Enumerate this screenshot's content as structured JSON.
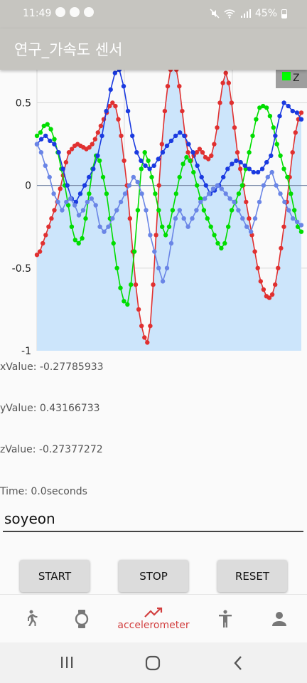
{
  "status_bar": {
    "time": "11:49",
    "battery": "45%"
  },
  "app_bar": {
    "title": "연구_가속도 센서"
  },
  "chart_data": {
    "type": "line",
    "ylim": [
      -1,
      0.7
    ],
    "yticks": [
      "0.5",
      "0",
      "-0.5",
      "-1"
    ],
    "legend": [
      {
        "name": "Z",
        "color": "#00ff00"
      }
    ],
    "legend_position": "top-right",
    "grid": true,
    "filled_series_color": "#cce5fb",
    "series": [
      {
        "color": "#e03030",
        "values": [
          -0.42,
          -0.4,
          -0.35,
          -0.3,
          -0.25,
          -0.2,
          -0.15,
          -0.1,
          -0.02,
          0.06,
          0.14,
          0.2,
          0.22,
          0.24,
          0.25,
          0.24,
          0.23,
          0.22,
          0.23,
          0.25,
          0.28,
          0.32,
          0.36,
          0.4,
          0.44,
          0.48,
          0.5,
          0.48,
          0.4,
          0.3,
          0.15,
          0.0,
          -0.2,
          -0.4,
          -0.6,
          -0.75,
          -0.85,
          -0.92,
          -0.95,
          -0.85,
          -0.6,
          -0.3,
          0.0,
          0.25,
          0.45,
          0.6,
          0.7,
          0.73,
          0.7,
          0.6,
          0.45,
          0.3,
          0.2,
          0.15,
          0.18,
          0.2,
          0.22,
          0.2,
          0.17,
          0.16,
          0.18,
          0.25,
          0.35,
          0.5,
          0.62,
          0.68,
          0.62,
          0.5,
          0.35,
          0.2,
          0.1,
          0.0,
          -0.1,
          -0.2,
          -0.3,
          -0.4,
          -0.5,
          -0.58,
          -0.63,
          -0.67,
          -0.68,
          -0.66,
          -0.6,
          -0.5,
          -0.38,
          -0.25,
          -0.1,
          0.05,
          0.2,
          0.32,
          0.4,
          0.44
        ]
      },
      {
        "color": "#00dd00",
        "values": [
          0.3,
          0.32,
          0.36,
          0.37,
          0.34,
          0.28,
          0.2,
          0.1,
          0.0,
          -0.12,
          -0.25,
          -0.33,
          -0.35,
          -0.32,
          -0.2,
          -0.05,
          0.1,
          0.18,
          0.15,
          0.05,
          -0.05,
          -0.2,
          -0.35,
          -0.5,
          -0.62,
          -0.7,
          -0.72,
          -0.6,
          -0.4,
          -0.15,
          0.1,
          0.2,
          0.15,
          0.05,
          -0.05,
          -0.15,
          -0.25,
          -0.3,
          -0.25,
          -0.15,
          -0.05,
          0.05,
          0.13,
          0.17,
          0.15,
          0.08,
          0.0,
          -0.08,
          -0.15,
          -0.2,
          -0.25,
          -0.3,
          -0.35,
          -0.38,
          -0.35,
          -0.25,
          -0.15,
          -0.1,
          -0.05,
          0.0,
          0.1,
          0.2,
          0.3,
          0.4,
          0.47,
          0.48,
          0.47,
          0.42,
          0.35,
          0.25,
          0.18,
          0.1,
          0.05,
          -0.05,
          -0.15,
          -0.25,
          -0.28
        ]
      },
      {
        "color": "#1a3ae0",
        "values": [
          0.25,
          0.28,
          0.3,
          0.27,
          0.25,
          0.2,
          0.1,
          0.0,
          -0.08,
          -0.1,
          -0.05,
          0.0,
          0.05,
          0.1,
          0.18,
          0.3,
          0.45,
          0.58,
          0.68,
          0.7,
          0.6,
          0.45,
          0.3,
          0.2,
          0.15,
          0.12,
          0.1,
          0.12,
          0.16,
          0.2,
          0.24,
          0.27,
          0.3,
          0.32,
          0.3,
          0.25,
          0.2,
          0.12,
          0.05,
          0.0,
          -0.05,
          -0.03,
          0.0,
          0.05,
          0.1,
          0.13,
          0.15,
          0.14,
          0.12,
          0.1,
          0.08,
          0.08,
          0.1,
          0.14,
          0.18,
          0.3,
          0.42,
          0.5,
          0.48,
          0.45,
          0.44,
          0.4
        ]
      },
      {
        "color": "#6a85e6",
        "values": [
          0.25,
          0.2,
          0.12,
          0.05,
          -0.05,
          -0.1,
          -0.15,
          -0.1,
          -0.08,
          -0.12,
          -0.18,
          -0.15,
          -0.1,
          -0.08,
          -0.12,
          -0.25,
          -0.28,
          -0.25,
          -0.2,
          -0.15,
          -0.1,
          -0.05,
          0.0,
          0.05,
          0.02,
          -0.05,
          -0.15,
          -0.3,
          -0.4,
          -0.5,
          -0.58,
          -0.5,
          -0.35,
          -0.2,
          -0.15,
          -0.2,
          -0.25,
          -0.2,
          -0.15,
          -0.1,
          -0.08,
          -0.05,
          -0.02,
          0.0,
          -0.02,
          -0.05,
          -0.08,
          -0.1,
          -0.15,
          -0.2,
          -0.25,
          -0.28,
          -0.2,
          -0.1,
          0.0,
          0.05,
          0.08,
          0.0,
          -0.05,
          -0.1,
          -0.15,
          -0.2,
          -0.22,
          -0.24
        ]
      }
    ]
  },
  "readings": {
    "x": "xValue: -0.27785933",
    "y": "yValue: 0.43166733",
    "z": "zValue: -0.27377272",
    "time": "Time: 0.0seconds"
  },
  "name_input": {
    "value": "soyeon"
  },
  "buttons": {
    "start": "START",
    "stop": "STOP",
    "reset": "RESET"
  },
  "bottom_nav": {
    "items": [
      {
        "icon": "walk-icon",
        "label": ""
      },
      {
        "icon": "watch-icon",
        "label": ""
      },
      {
        "icon": "trending-icon",
        "label": "accelerometer",
        "active": true
      },
      {
        "icon": "accessibility-icon",
        "label": ""
      },
      {
        "icon": "person-icon",
        "label": ""
      }
    ],
    "active_color": "#d23f3f",
    "inactive_color": "#777777"
  }
}
